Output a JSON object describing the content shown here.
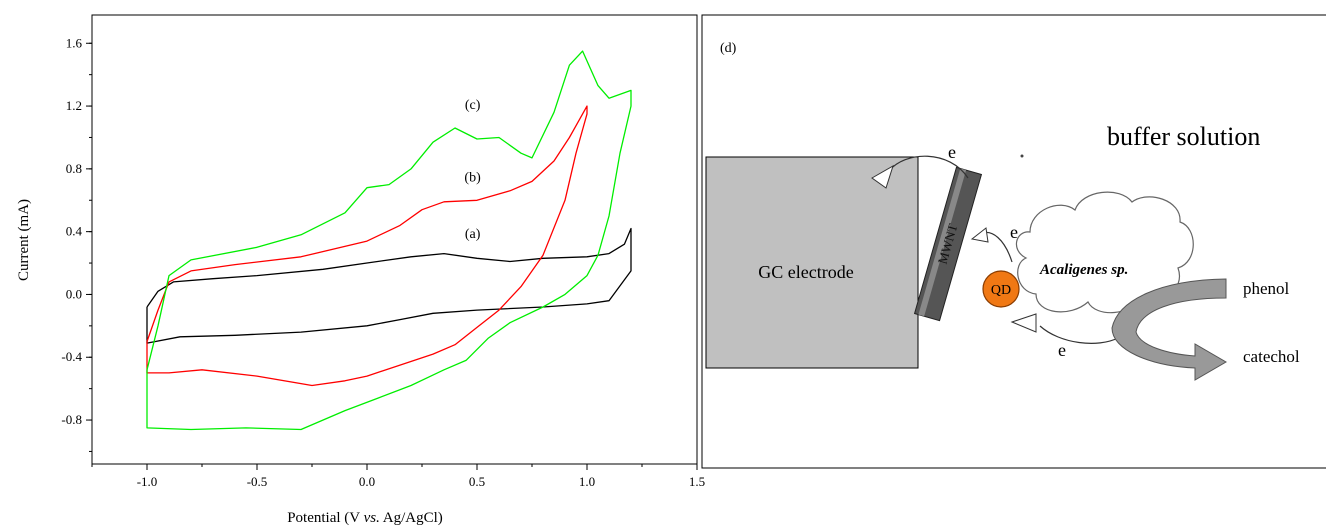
{
  "chart_data": {
    "type": "line",
    "xlabel": "Potential (V vs. Ag/AgCl)",
    "xlabel_parts": [
      "Potential (V ",
      "vs.",
      " Ag/AgCl)"
    ],
    "ylabel": "Current (mA)",
    "xlim": [
      -1.25,
      1.5
    ],
    "ylim": [
      -1.08,
      1.78
    ],
    "xticks": [
      -1.0,
      -0.5,
      0.0,
      0.5,
      1.0,
      1.5
    ],
    "xtick_labels": [
      "-1.0",
      "-0.5",
      "0.0",
      "0.5",
      "1.0",
      "1.5"
    ],
    "yticks": [
      -0.8,
      -0.4,
      0.0,
      0.4,
      0.8,
      1.2,
      1.6
    ],
    "ytick_labels": [
      "-0.8",
      "-0.4",
      "0.0",
      "0.4",
      "0.8",
      "1.2",
      "1.6"
    ],
    "grid": false,
    "series": [
      {
        "label": "(a)",
        "color": "#000000",
        "points": [
          [
            -1.0,
            -0.08
          ],
          [
            -0.95,
            0.02
          ],
          [
            -0.88,
            0.08
          ],
          [
            -0.7,
            0.1
          ],
          [
            -0.5,
            0.12
          ],
          [
            -0.2,
            0.16
          ],
          [
            0.0,
            0.2
          ],
          [
            0.2,
            0.24
          ],
          [
            0.35,
            0.26
          ],
          [
            0.5,
            0.23
          ],
          [
            0.65,
            0.21
          ],
          [
            0.8,
            0.23
          ],
          [
            1.0,
            0.24
          ],
          [
            1.1,
            0.26
          ],
          [
            1.17,
            0.32
          ],
          [
            1.2,
            0.42
          ],
          [
            1.2,
            0.15
          ],
          [
            1.1,
            -0.04
          ],
          [
            1.0,
            -0.06
          ],
          [
            0.8,
            -0.08
          ],
          [
            0.5,
            -0.1
          ],
          [
            0.3,
            -0.12
          ],
          [
            0.15,
            -0.16
          ],
          [
            0.0,
            -0.2
          ],
          [
            -0.3,
            -0.24
          ],
          [
            -0.6,
            -0.26
          ],
          [
            -0.85,
            -0.27
          ],
          [
            -1.0,
            -0.31
          ]
        ]
      },
      {
        "label": "(b)",
        "color": "#ff0000",
        "points": [
          [
            -1.0,
            -0.3
          ],
          [
            -0.95,
            -0.1
          ],
          [
            -0.9,
            0.08
          ],
          [
            -0.8,
            0.15
          ],
          [
            -0.6,
            0.19
          ],
          [
            -0.3,
            0.24
          ],
          [
            0.0,
            0.34
          ],
          [
            0.15,
            0.44
          ],
          [
            0.25,
            0.54
          ],
          [
            0.35,
            0.59
          ],
          [
            0.5,
            0.6
          ],
          [
            0.65,
            0.66
          ],
          [
            0.75,
            0.72
          ],
          [
            0.85,
            0.85
          ],
          [
            0.92,
            1.0
          ],
          [
            1.0,
            1.2
          ],
          [
            1.0,
            1.15
          ],
          [
            0.95,
            0.9
          ],
          [
            0.9,
            0.6
          ],
          [
            0.8,
            0.25
          ],
          [
            0.7,
            0.05
          ],
          [
            0.6,
            -0.1
          ],
          [
            0.5,
            -0.21
          ],
          [
            0.4,
            -0.32
          ],
          [
            0.3,
            -0.38
          ],
          [
            0.15,
            -0.45
          ],
          [
            0.0,
            -0.52
          ],
          [
            -0.1,
            -0.55
          ],
          [
            -0.25,
            -0.58
          ],
          [
            -0.5,
            -0.52
          ],
          [
            -0.75,
            -0.48
          ],
          [
            -0.9,
            -0.5
          ],
          [
            -1.0,
            -0.5
          ]
        ]
      },
      {
        "label": "(c)",
        "color": "#00ee00",
        "points": [
          [
            -1.0,
            -0.48
          ],
          [
            -0.95,
            -0.2
          ],
          [
            -0.9,
            0.12
          ],
          [
            -0.8,
            0.22
          ],
          [
            -0.5,
            0.3
          ],
          [
            -0.3,
            0.38
          ],
          [
            -0.1,
            0.52
          ],
          [
            0.0,
            0.68
          ],
          [
            0.1,
            0.7
          ],
          [
            0.2,
            0.8
          ],
          [
            0.3,
            0.97
          ],
          [
            0.4,
            1.06
          ],
          [
            0.5,
            0.99
          ],
          [
            0.6,
            1.0
          ],
          [
            0.7,
            0.9
          ],
          [
            0.75,
            0.87
          ],
          [
            0.85,
            1.16
          ],
          [
            0.92,
            1.46
          ],
          [
            0.98,
            1.55
          ],
          [
            1.05,
            1.33
          ],
          [
            1.1,
            1.25
          ],
          [
            1.2,
            1.3
          ],
          [
            1.2,
            1.2
          ],
          [
            1.15,
            0.9
          ],
          [
            1.1,
            0.5
          ],
          [
            1.05,
            0.25
          ],
          [
            1.0,
            0.12
          ],
          [
            0.9,
            0.0
          ],
          [
            0.8,
            -0.08
          ],
          [
            0.65,
            -0.18
          ],
          [
            0.55,
            -0.28
          ],
          [
            0.45,
            -0.42
          ],
          [
            0.35,
            -0.48
          ],
          [
            0.2,
            -0.58
          ],
          [
            0.05,
            -0.66
          ],
          [
            -0.1,
            -0.74
          ],
          [
            -0.3,
            -0.86
          ],
          [
            -0.55,
            -0.85
          ],
          [
            -0.8,
            -0.86
          ],
          [
            -1.0,
            -0.85
          ]
        ]
      }
    ],
    "curve_labels": [
      {
        "text": "(a)",
        "x": 0.48,
        "y": 0.36
      },
      {
        "text": "(b)",
        "x": 0.48,
        "y": 0.72
      },
      {
        "text": "(c)",
        "x": 0.48,
        "y": 1.18
      }
    ]
  },
  "diagram": {
    "panel_label": "(d)",
    "buffer_label": "buffer solution",
    "electrode_label": "GC electrode",
    "nanotube_label": "MWNT",
    "qd_label": "QD",
    "bacteria_label": "Acaligenes sp.",
    "electron_label": "e",
    "substrate_label": "phenol",
    "product_label": "catechol",
    "colors": {
      "electrode_fill": "#c0c0c0",
      "qd_fill": "#f07814",
      "arrow_fill": "#999999"
    }
  }
}
